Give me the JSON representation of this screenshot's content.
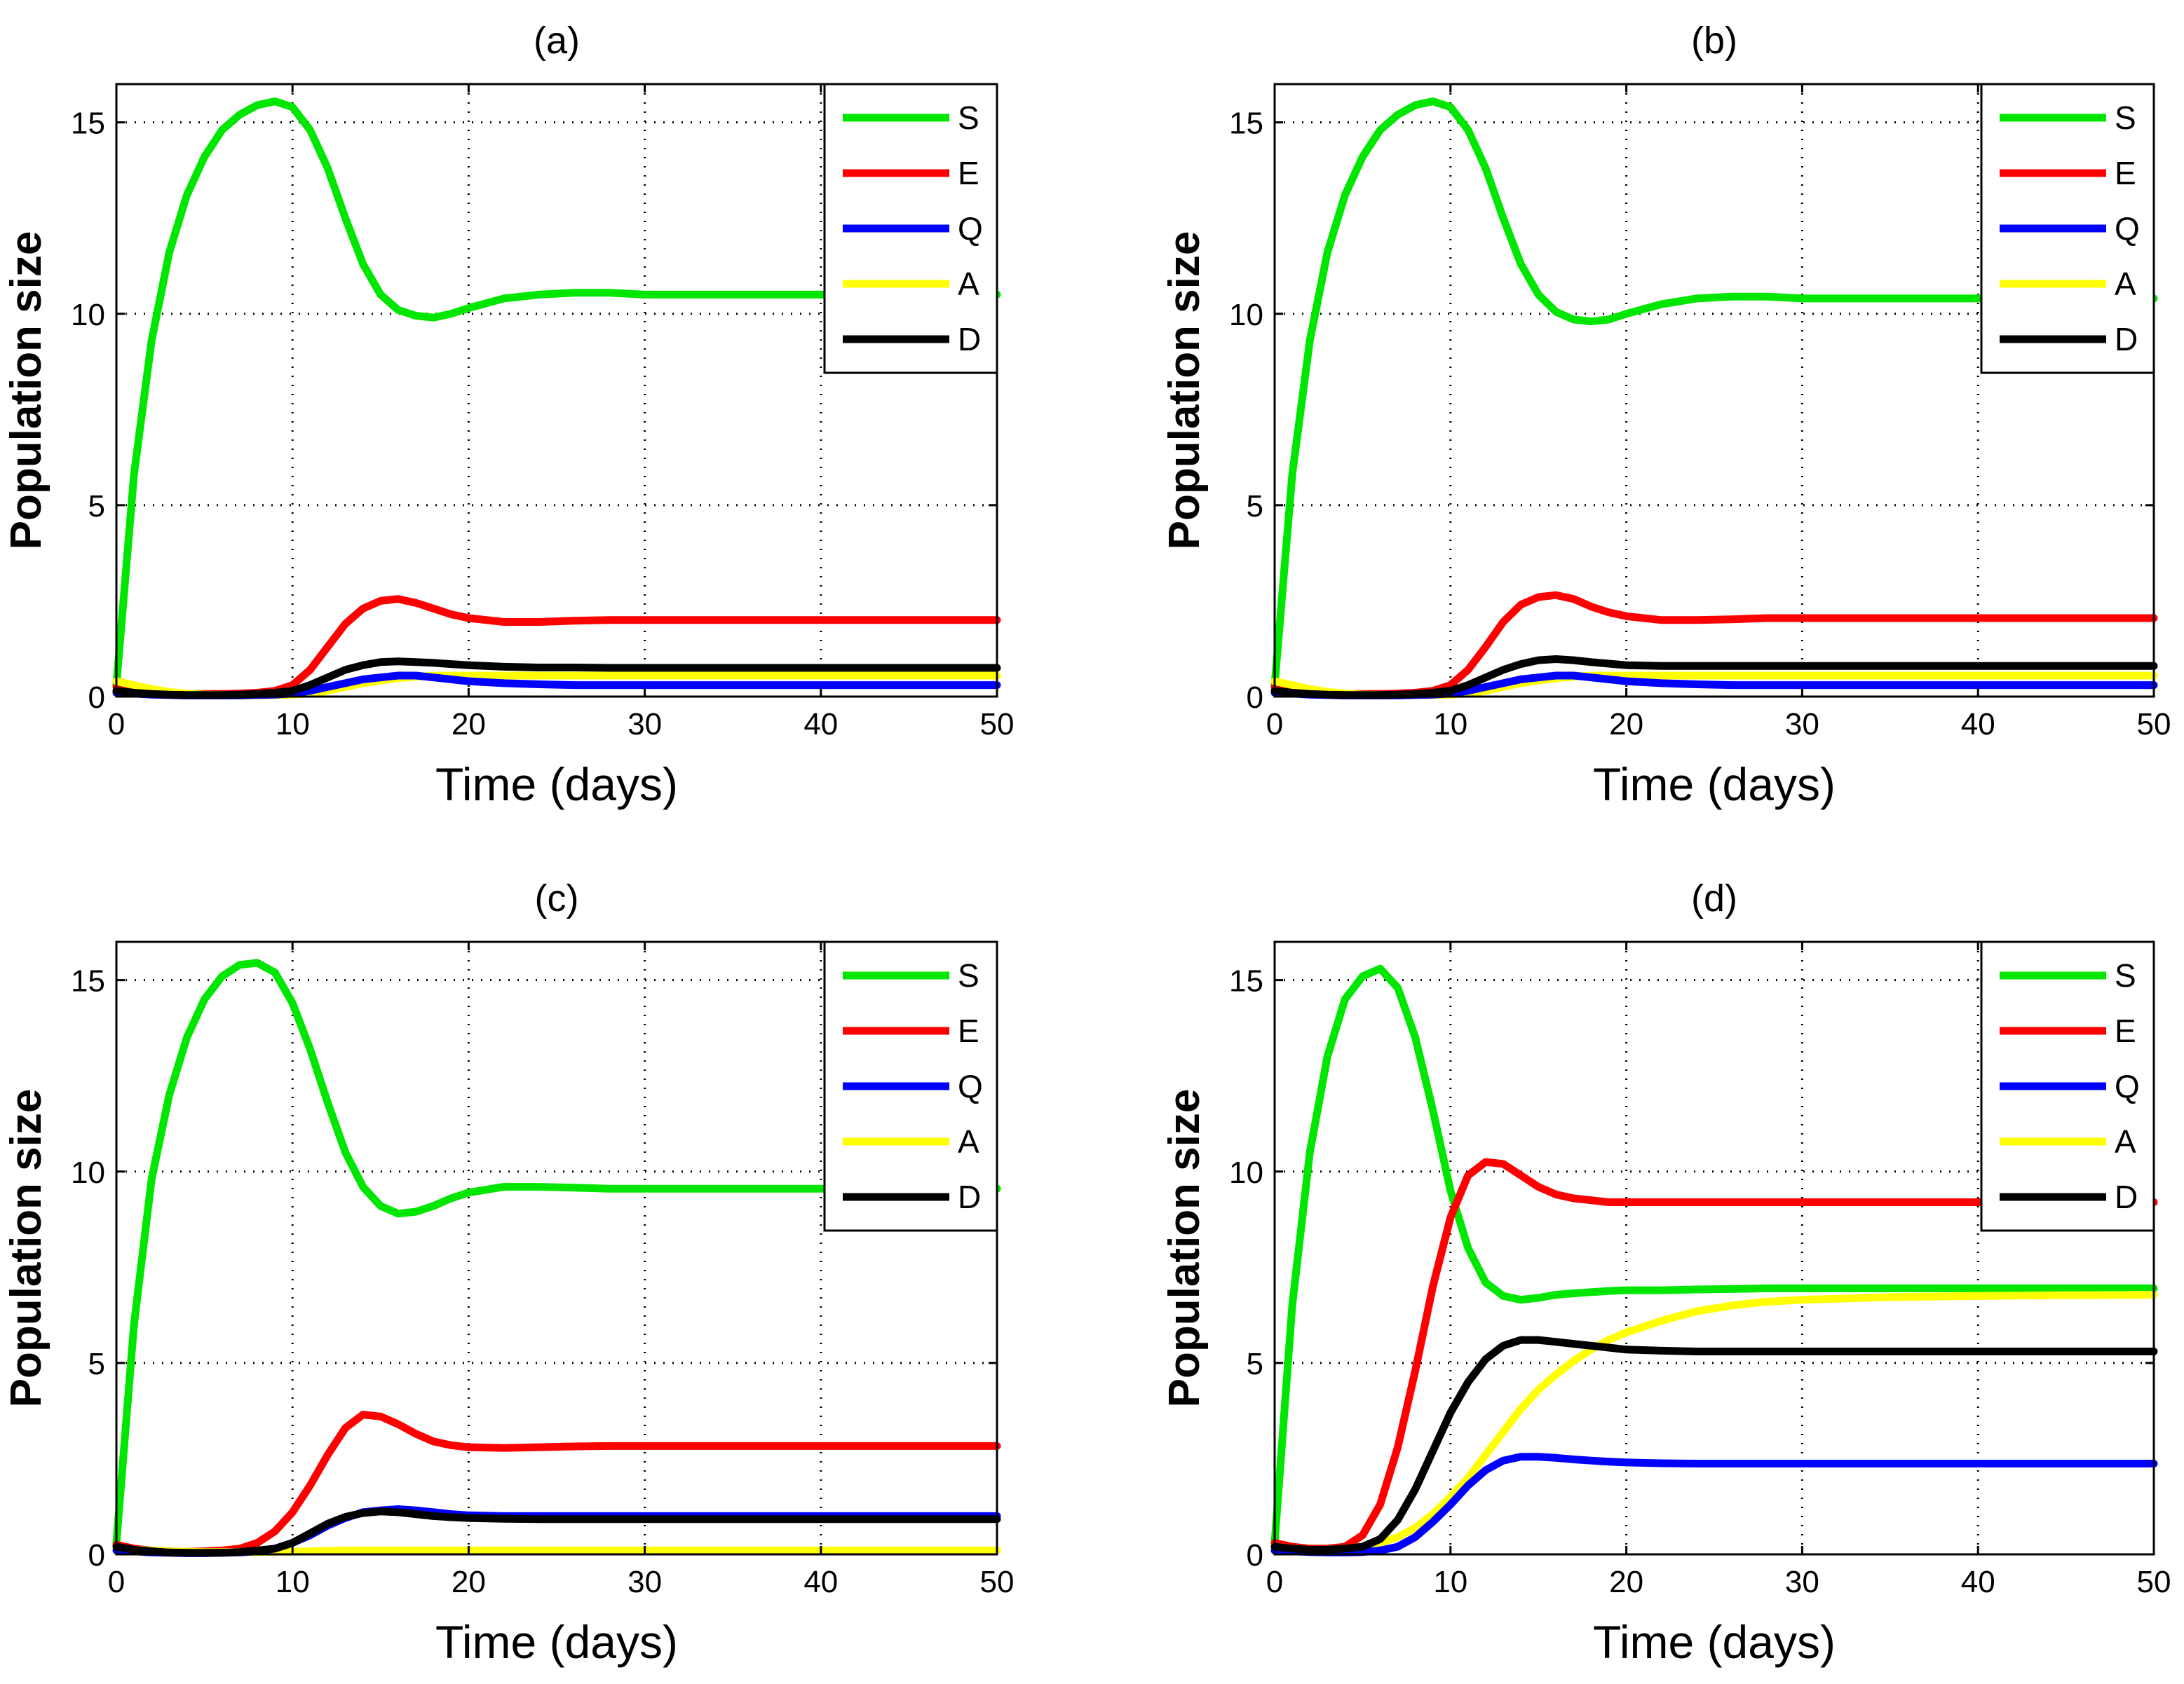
{
  "chart_data": [
    {
      "type": "line",
      "title": "(a)",
      "xlabel": "Time (days)",
      "ylabel": "Population size",
      "xlim": [
        0,
        50
      ],
      "ylim": [
        0,
        16
      ],
      "xticks": [
        0,
        10,
        20,
        30,
        40,
        50
      ],
      "yticks": [
        0,
        5,
        10,
        15
      ],
      "grid": true,
      "legend_position": "top-right",
      "x": [
        0,
        1,
        2,
        3,
        4,
        5,
        6,
        7,
        8,
        9,
        10,
        11,
        12,
        13,
        14,
        15,
        16,
        17,
        18,
        19,
        20,
        22,
        24,
        26,
        28,
        30,
        35,
        40,
        45,
        50
      ],
      "series": [
        {
          "name": "S",
          "color": "#00e600",
          "values": [
            0.3,
            5.8,
            9.3,
            11.6,
            13.1,
            14.1,
            14.8,
            15.2,
            15.45,
            15.55,
            15.4,
            14.8,
            13.8,
            12.5,
            11.3,
            10.5,
            10.1,
            9.95,
            9.9,
            10.0,
            10.15,
            10.4,
            10.5,
            10.55,
            10.55,
            10.5,
            10.5,
            10.5,
            10.5,
            10.5
          ]
        },
        {
          "name": "E",
          "color": "#ff0000",
          "values": [
            0.25,
            0.15,
            0.1,
            0.08,
            0.07,
            0.07,
            0.07,
            0.08,
            0.1,
            0.15,
            0.3,
            0.7,
            1.3,
            1.9,
            2.3,
            2.5,
            2.55,
            2.45,
            2.3,
            2.15,
            2.05,
            1.95,
            1.95,
            1.98,
            2.0,
            2.0,
            2.0,
            2.0,
            2.0,
            2.0
          ]
        },
        {
          "name": "Q",
          "color": "#0000ff",
          "values": [
            0.1,
            0.08,
            0.05,
            0.04,
            0.03,
            0.03,
            0.03,
            0.03,
            0.04,
            0.05,
            0.08,
            0.15,
            0.25,
            0.35,
            0.45,
            0.5,
            0.55,
            0.55,
            0.5,
            0.45,
            0.4,
            0.35,
            0.32,
            0.3,
            0.3,
            0.3,
            0.3,
            0.3,
            0.3,
            0.3
          ]
        },
        {
          "name": "A",
          "color": "#ffff00",
          "values": [
            0.4,
            0.3,
            0.2,
            0.12,
            0.08,
            0.05,
            0.04,
            0.03,
            0.03,
            0.04,
            0.05,
            0.08,
            0.15,
            0.25,
            0.35,
            0.42,
            0.48,
            0.52,
            0.55,
            0.55,
            0.55,
            0.55,
            0.55,
            0.55,
            0.55,
            0.55,
            0.55,
            0.55,
            0.55,
            0.55
          ]
        },
        {
          "name": "D",
          "color": "#000000",
          "values": [
            0.15,
            0.1,
            0.07,
            0.05,
            0.04,
            0.04,
            0.04,
            0.05,
            0.07,
            0.1,
            0.15,
            0.3,
            0.5,
            0.7,
            0.82,
            0.9,
            0.92,
            0.9,
            0.88,
            0.85,
            0.82,
            0.78,
            0.76,
            0.76,
            0.75,
            0.75,
            0.75,
            0.75,
            0.75,
            0.75
          ]
        }
      ]
    },
    {
      "type": "line",
      "title": "(b)",
      "xlabel": "Time (days)",
      "ylabel": "Population size",
      "xlim": [
        0,
        50
      ],
      "ylim": [
        0,
        16
      ],
      "xticks": [
        0,
        10,
        20,
        30,
        40,
        50
      ],
      "yticks": [
        0,
        5,
        10,
        15
      ],
      "grid": true,
      "legend_position": "top-right",
      "x": [
        0,
        1,
        2,
        3,
        4,
        5,
        6,
        7,
        8,
        9,
        10,
        11,
        12,
        13,
        14,
        15,
        16,
        17,
        18,
        19,
        20,
        22,
        24,
        26,
        28,
        30,
        35,
        40,
        45,
        50
      ],
      "series": [
        {
          "name": "S",
          "color": "#00e600",
          "values": [
            0.3,
            5.8,
            9.3,
            11.6,
            13.1,
            14.1,
            14.8,
            15.2,
            15.45,
            15.55,
            15.4,
            14.8,
            13.8,
            12.5,
            11.3,
            10.5,
            10.05,
            9.85,
            9.8,
            9.85,
            10.0,
            10.25,
            10.4,
            10.45,
            10.45,
            10.4,
            10.4,
            10.4,
            10.4,
            10.4
          ]
        },
        {
          "name": "E",
          "color": "#ff0000",
          "values": [
            0.25,
            0.15,
            0.1,
            0.08,
            0.07,
            0.07,
            0.07,
            0.08,
            0.1,
            0.15,
            0.3,
            0.7,
            1.3,
            1.95,
            2.4,
            2.6,
            2.65,
            2.55,
            2.35,
            2.2,
            2.1,
            2.0,
            2.0,
            2.02,
            2.05,
            2.05,
            2.05,
            2.05,
            2.05,
            2.05
          ]
        },
        {
          "name": "Q",
          "color": "#0000ff",
          "values": [
            0.1,
            0.08,
            0.05,
            0.04,
            0.03,
            0.03,
            0.03,
            0.03,
            0.04,
            0.05,
            0.08,
            0.15,
            0.25,
            0.35,
            0.45,
            0.5,
            0.55,
            0.55,
            0.5,
            0.45,
            0.4,
            0.35,
            0.32,
            0.3,
            0.3,
            0.3,
            0.3,
            0.3,
            0.3,
            0.3
          ]
        },
        {
          "name": "A",
          "color": "#ffff00",
          "values": [
            0.4,
            0.3,
            0.2,
            0.12,
            0.08,
            0.05,
            0.04,
            0.03,
            0.03,
            0.04,
            0.05,
            0.08,
            0.15,
            0.25,
            0.35,
            0.42,
            0.48,
            0.52,
            0.55,
            0.55,
            0.55,
            0.55,
            0.55,
            0.55,
            0.55,
            0.55,
            0.55,
            0.55,
            0.55,
            0.55
          ]
        },
        {
          "name": "D",
          "color": "#000000",
          "values": [
            0.15,
            0.1,
            0.07,
            0.05,
            0.04,
            0.04,
            0.04,
            0.05,
            0.07,
            0.1,
            0.15,
            0.3,
            0.5,
            0.7,
            0.85,
            0.95,
            0.98,
            0.95,
            0.9,
            0.86,
            0.82,
            0.8,
            0.8,
            0.8,
            0.8,
            0.8,
            0.8,
            0.8,
            0.8,
            0.8
          ]
        }
      ]
    },
    {
      "type": "line",
      "title": "(c)",
      "xlabel": "Time (days)",
      "ylabel": "Population size",
      "xlim": [
        0,
        50
      ],
      "ylim": [
        0,
        16
      ],
      "xticks": [
        0,
        10,
        20,
        30,
        40,
        50
      ],
      "yticks": [
        0,
        5,
        10,
        15
      ],
      "grid": true,
      "legend_position": "top-right",
      "x": [
        0,
        1,
        2,
        3,
        4,
        5,
        6,
        7,
        8,
        9,
        10,
        11,
        12,
        13,
        14,
        15,
        16,
        17,
        18,
        19,
        20,
        22,
        24,
        26,
        28,
        30,
        35,
        40,
        45,
        50
      ],
      "series": [
        {
          "name": "S",
          "color": "#00e600",
          "values": [
            0.3,
            6.0,
            9.8,
            12.0,
            13.5,
            14.5,
            15.1,
            15.4,
            15.45,
            15.2,
            14.4,
            13.2,
            11.8,
            10.5,
            9.6,
            9.1,
            8.9,
            8.95,
            9.1,
            9.3,
            9.45,
            9.6,
            9.6,
            9.58,
            9.55,
            9.55,
            9.55,
            9.55,
            9.55,
            9.55
          ]
        },
        {
          "name": "E",
          "color": "#ff0000",
          "values": [
            0.25,
            0.15,
            0.1,
            0.08,
            0.07,
            0.08,
            0.1,
            0.15,
            0.3,
            0.6,
            1.1,
            1.8,
            2.6,
            3.3,
            3.65,
            3.6,
            3.4,
            3.15,
            2.95,
            2.85,
            2.8,
            2.78,
            2.8,
            2.82,
            2.83,
            2.83,
            2.83,
            2.83,
            2.83,
            2.83
          ]
        },
        {
          "name": "Q",
          "color": "#0000ff",
          "values": [
            0.1,
            0.08,
            0.05,
            0.04,
            0.03,
            0.03,
            0.04,
            0.05,
            0.08,
            0.15,
            0.3,
            0.5,
            0.75,
            0.95,
            1.1,
            1.15,
            1.18,
            1.15,
            1.1,
            1.05,
            1.02,
            1.0,
            1.0,
            1.0,
            1.0,
            1.0,
            1.0,
            1.0,
            1.0,
            1.0
          ]
        },
        {
          "name": "A",
          "color": "#ffff00",
          "values": [
            0.15,
            0.12,
            0.1,
            0.08,
            0.07,
            0.06,
            0.06,
            0.06,
            0.06,
            0.07,
            0.07,
            0.08,
            0.09,
            0.1,
            0.1,
            0.1,
            0.1,
            0.1,
            0.1,
            0.1,
            0.1,
            0.1,
            0.1,
            0.1,
            0.1,
            0.1,
            0.1,
            0.1,
            0.1,
            0.1
          ]
        },
        {
          "name": "D",
          "color": "#000000",
          "values": [
            0.2,
            0.12,
            0.08,
            0.05,
            0.04,
            0.04,
            0.04,
            0.06,
            0.1,
            0.15,
            0.3,
            0.55,
            0.8,
            0.98,
            1.08,
            1.12,
            1.1,
            1.05,
            1.0,
            0.97,
            0.95,
            0.93,
            0.92,
            0.92,
            0.92,
            0.92,
            0.92,
            0.92,
            0.92,
            0.92
          ]
        }
      ]
    },
    {
      "type": "line",
      "title": "(d)",
      "xlabel": "Time (days)",
      "ylabel": "Population size",
      "xlim": [
        0,
        50
      ],
      "ylim": [
        0,
        16
      ],
      "xticks": [
        0,
        10,
        20,
        30,
        40,
        50
      ],
      "yticks": [
        0,
        5,
        10,
        15
      ],
      "grid": true,
      "legend_position": "top-right",
      "x": [
        0,
        1,
        2,
        3,
        4,
        5,
        6,
        7,
        8,
        9,
        10,
        11,
        12,
        13,
        14,
        15,
        16,
        17,
        18,
        19,
        20,
        22,
        24,
        26,
        28,
        30,
        35,
        40,
        45,
        50
      ],
      "series": [
        {
          "name": "S",
          "color": "#00e600",
          "values": [
            0.3,
            6.5,
            10.5,
            13.0,
            14.5,
            15.1,
            15.3,
            14.8,
            13.5,
            11.6,
            9.5,
            8.0,
            7.1,
            6.75,
            6.65,
            6.7,
            6.78,
            6.82,
            6.85,
            6.88,
            6.9,
            6.9,
            6.92,
            6.93,
            6.95,
            6.95,
            6.95,
            6.95,
            6.95,
            6.95
          ]
        },
        {
          "name": "E",
          "color": "#ff0000",
          "values": [
            0.3,
            0.2,
            0.15,
            0.15,
            0.2,
            0.5,
            1.3,
            2.8,
            4.8,
            7.0,
            8.8,
            9.9,
            10.25,
            10.2,
            9.9,
            9.6,
            9.4,
            9.3,
            9.25,
            9.2,
            9.2,
            9.2,
            9.2,
            9.2,
            9.2,
            9.2,
            9.2,
            9.2,
            9.2,
            9.2
          ]
        },
        {
          "name": "Q",
          "color": "#0000ff",
          "values": [
            0.1,
            0.08,
            0.06,
            0.05,
            0.05,
            0.06,
            0.1,
            0.2,
            0.45,
            0.85,
            1.3,
            1.8,
            2.2,
            2.45,
            2.55,
            2.55,
            2.52,
            2.48,
            2.45,
            2.42,
            2.4,
            2.38,
            2.37,
            2.37,
            2.37,
            2.37,
            2.37,
            2.37,
            2.37,
            2.37
          ]
        },
        {
          "name": "A",
          "color": "#ffff00",
          "values": [
            0.2,
            0.15,
            0.12,
            0.12,
            0.15,
            0.2,
            0.3,
            0.45,
            0.7,
            1.05,
            1.5,
            2.0,
            2.6,
            3.2,
            3.8,
            4.3,
            4.7,
            5.05,
            5.35,
            5.6,
            5.8,
            6.1,
            6.35,
            6.5,
            6.6,
            6.65,
            6.72,
            6.75,
            6.77,
            6.78
          ]
        },
        {
          "name": "D",
          "color": "#000000",
          "values": [
            0.2,
            0.15,
            0.12,
            0.12,
            0.15,
            0.2,
            0.4,
            0.9,
            1.7,
            2.7,
            3.7,
            4.5,
            5.1,
            5.45,
            5.6,
            5.6,
            5.55,
            5.5,
            5.45,
            5.4,
            5.35,
            5.32,
            5.3,
            5.3,
            5.3,
            5.3,
            5.3,
            5.3,
            5.3,
            5.3
          ]
        }
      ]
    }
  ]
}
